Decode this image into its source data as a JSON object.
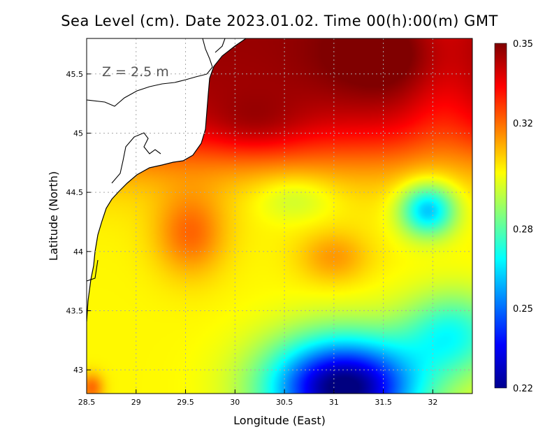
{
  "chart_data": {
    "type": "heatmap",
    "title": "Sea Level (cm). Date 2023.01.02. Time 00(h):00(m) GMT",
    "xlabel": "Longitude (East)",
    "ylabel": "Latitude (North)",
    "annotation": "Z = 2.5 m",
    "xlim": [
      28.5,
      32.4
    ],
    "ylim": [
      42.8,
      45.8
    ],
    "x_ticks": [
      28.5,
      29,
      29.5,
      30,
      30.5,
      31,
      31.5,
      32
    ],
    "x_tick_labels": [
      "28.5",
      "29",
      "29.5",
      "30",
      "30.5",
      "31",
      "31.5",
      "32"
    ],
    "y_ticks": [
      43,
      43.5,
      44,
      44.5,
      45,
      45.5
    ],
    "y_tick_labels": [
      "43",
      "43.5",
      "44",
      "44.5",
      "45",
      "45.5"
    ],
    "colorbar": {
      "min": 0.22,
      "max": 0.35,
      "ticks": [
        0.22,
        0.25,
        0.28,
        0.32,
        0.35
      ],
      "tick_labels": [
        "0.22",
        "0.25",
        "0.28",
        "0.32",
        "0.35"
      ],
      "colormap": "jet"
    },
    "field_features": [
      {
        "name": "northern high",
        "lon": 31.6,
        "lat": 45.65,
        "value": 0.35
      },
      {
        "name": "north-central high",
        "lon": 30.2,
        "lat": 45.05,
        "value": 0.345
      },
      {
        "name": "western ridge",
        "lon": 29.6,
        "lat": 44.15,
        "value": 0.325
      },
      {
        "name": "central bump",
        "lon": 31.0,
        "lat": 43.95,
        "value": 0.315
      },
      {
        "name": "eastern eddy low",
        "lon": 31.95,
        "lat": 44.35,
        "value": 0.262
      },
      {
        "name": "southern low",
        "lon": 31.0,
        "lat": 42.95,
        "value": 0.222
      },
      {
        "name": "south-west warm patch",
        "lon": 28.55,
        "lat": 42.85,
        "value": 0.325
      }
    ],
    "land_color": "#ffffff",
    "grid": true
  }
}
